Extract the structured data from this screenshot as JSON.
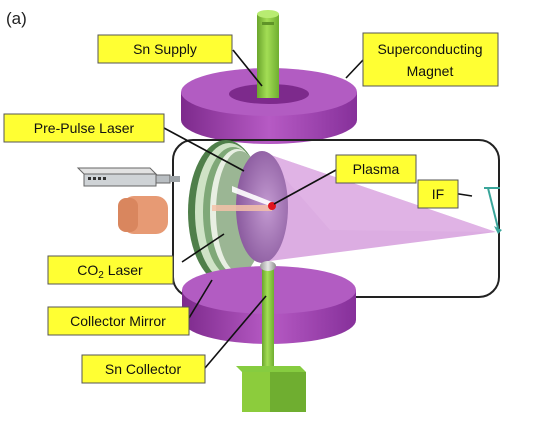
{
  "panel_label": "(a)",
  "labels": {
    "sn_supply": "Sn Supply",
    "superconducting_line1": "Superconducting",
    "superconducting_line2": "Magnet",
    "pre_pulse_laser": "Pre-Pulse Laser",
    "plasma": "Plasma",
    "if": "IF",
    "co2_main": "CO",
    "co2_sub": "2",
    "co2_tail": " Laser",
    "collector_mirror": "Collector Mirror",
    "sn_collector": "Sn Collector"
  },
  "colors": {
    "label_fill": "#ffff33",
    "magnet": "#a646b6",
    "tin_pipe": "#8ccc3c",
    "plasma_dot": "#e0141e",
    "euv_cone": "#d8a4df",
    "co2_laser_body": "#e79a74"
  }
}
